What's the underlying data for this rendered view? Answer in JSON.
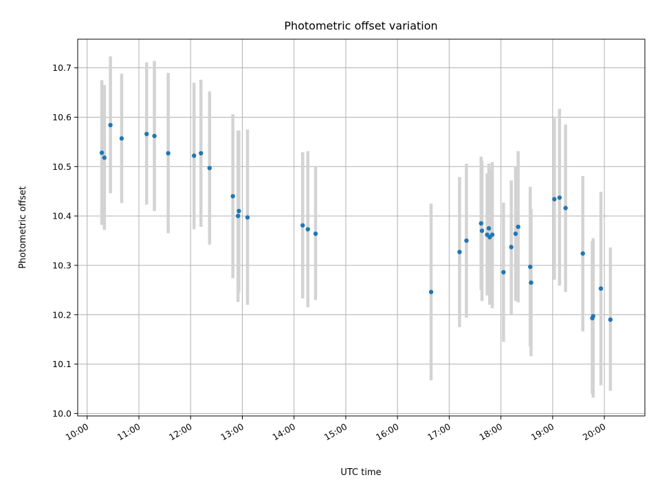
{
  "chart_data": {
    "type": "scatter",
    "title": "Photometric offset variation",
    "xlabel": "UTC time",
    "ylabel": "Photometric offset",
    "xlim": [
      "09:49",
      "20:47"
    ],
    "ylim": [
      9.995,
      10.758
    ],
    "x_ticks": [
      "10:00",
      "11:00",
      "12:00",
      "13:00",
      "14:00",
      "15:00",
      "16:00",
      "17:00",
      "18:00",
      "19:00",
      "20:00"
    ],
    "y_ticks": [
      "10.0",
      "10.1",
      "10.2",
      "10.3",
      "10.4",
      "10.5",
      "10.6",
      "10.7"
    ],
    "grid": true,
    "legend": "none",
    "marker_color": "#1f77b4",
    "errorbar_color": "#d3d3d3",
    "series": [
      {
        "points": [
          {
            "x": "10:17",
            "y": 10.528,
            "ylo": 10.382,
            "yhi": 10.675
          },
          {
            "x": "10:20",
            "y": 10.518,
            "ylo": 10.372,
            "yhi": 10.665
          },
          {
            "x": "10:27",
            "y": 10.584,
            "ylo": 10.446,
            "yhi": 10.723
          },
          {
            "x": "10:40",
            "y": 10.557,
            "ylo": 10.426,
            "yhi": 10.688
          },
          {
            "x": "11:09",
            "y": 10.566,
            "ylo": 10.423,
            "yhi": 10.711
          },
          {
            "x": "11:18",
            "y": 10.562,
            "ylo": 10.41,
            "yhi": 10.714
          },
          {
            "x": "11:34",
            "y": 10.527,
            "ylo": 10.365,
            "yhi": 10.69
          },
          {
            "x": "12:04",
            "y": 10.522,
            "ylo": 10.373,
            "yhi": 10.67
          },
          {
            "x": "12:12",
            "y": 10.527,
            "ylo": 10.378,
            "yhi": 10.676
          },
          {
            "x": "12:22",
            "y": 10.497,
            "ylo": 10.342,
            "yhi": 10.652
          },
          {
            "x": "12:49",
            "y": 10.44,
            "ylo": 10.274,
            "yhi": 10.606
          },
          {
            "x": "12:55",
            "y": 10.4,
            "ylo": 10.226,
            "yhi": 10.573
          },
          {
            "x": "12:56",
            "y": 10.41,
            "ylo": 10.245,
            "yhi": 10.573
          },
          {
            "x": "13:06",
            "y": 10.397,
            "ylo": 10.22,
            "yhi": 10.575
          },
          {
            "x": "14:10",
            "y": 10.381,
            "ylo": 10.233,
            "yhi": 10.529
          },
          {
            "x": "14:16",
            "y": 10.373,
            "ylo": 10.215,
            "yhi": 10.531
          },
          {
            "x": "14:25",
            "y": 10.364,
            "ylo": 10.23,
            "yhi": 10.5
          },
          {
            "x": "16:39",
            "y": 10.246,
            "ylo": 10.067,
            "yhi": 10.425
          },
          {
            "x": "17:12",
            "y": 10.327,
            "ylo": 10.175,
            "yhi": 10.479
          },
          {
            "x": "17:20",
            "y": 10.35,
            "ylo": 10.194,
            "yhi": 10.506
          },
          {
            "x": "17:37",
            "y": 10.385,
            "ylo": 10.25,
            "yhi": 10.52
          },
          {
            "x": "17:38",
            "y": 10.37,
            "ylo": 10.228,
            "yhi": 10.512
          },
          {
            "x": "17:44",
            "y": 10.362,
            "ylo": 10.239,
            "yhi": 10.486
          },
          {
            "x": "17:46",
            "y": 10.375,
            "ylo": 10.241,
            "yhi": 10.506
          },
          {
            "x": "17:47",
            "y": 10.357,
            "ylo": 10.22,
            "yhi": 10.494
          },
          {
            "x": "17:50",
            "y": 10.362,
            "ylo": 10.213,
            "yhi": 10.509
          },
          {
            "x": "18:03",
            "y": 10.286,
            "ylo": 10.145,
            "yhi": 10.427
          },
          {
            "x": "18:12",
            "y": 10.337,
            "ylo": 10.201,
            "yhi": 10.472
          },
          {
            "x": "18:17",
            "y": 10.364,
            "ylo": 10.228,
            "yhi": 10.5
          },
          {
            "x": "18:20",
            "y": 10.378,
            "ylo": 10.225,
            "yhi": 10.531
          },
          {
            "x": "18:34",
            "y": 10.297,
            "ylo": 10.135,
            "yhi": 10.459
          },
          {
            "x": "18:35",
            "y": 10.265,
            "ylo": 10.116,
            "yhi": 10.414
          },
          {
            "x": "19:02",
            "y": 10.434,
            "ylo": 10.271,
            "yhi": 10.598
          },
          {
            "x": "19:08",
            "y": 10.437,
            "ylo": 10.259,
            "yhi": 10.617
          },
          {
            "x": "19:15",
            "y": 10.416,
            "ylo": 10.246,
            "yhi": 10.585
          },
          {
            "x": "19:35",
            "y": 10.324,
            "ylo": 10.166,
            "yhi": 10.481
          },
          {
            "x": "19:46",
            "y": 10.193,
            "ylo": 10.04,
            "yhi": 10.349
          },
          {
            "x": "19:47",
            "y": 10.197,
            "ylo": 10.032,
            "yhi": 10.355
          },
          {
            "x": "19:56",
            "y": 10.253,
            "ylo": 10.057,
            "yhi": 10.449
          },
          {
            "x": "20:07",
            "y": 10.19,
            "ylo": 10.046,
            "yhi": 10.336
          }
        ]
      }
    ]
  }
}
